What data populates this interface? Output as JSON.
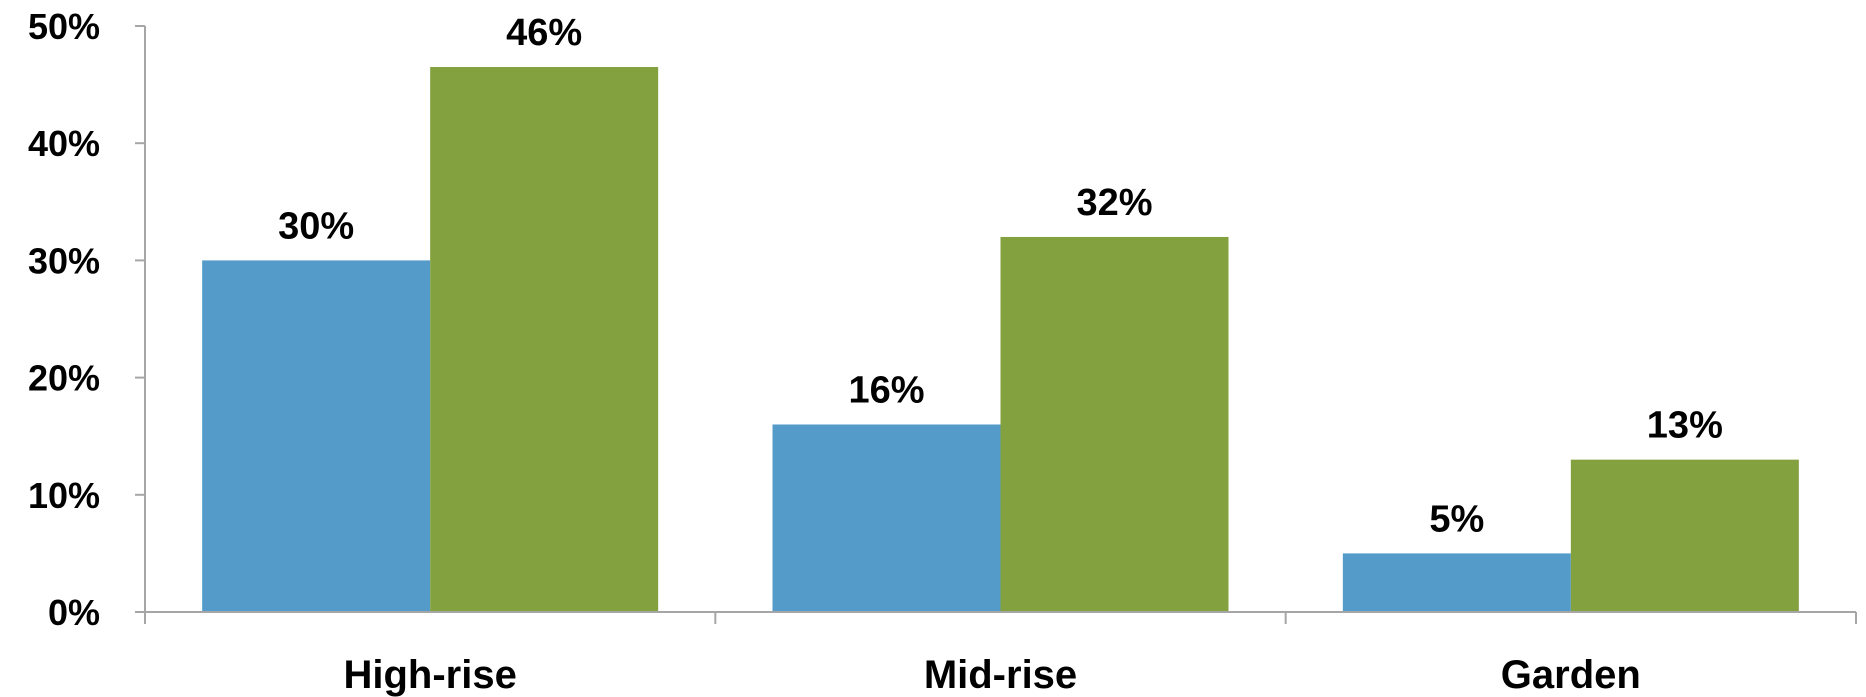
{
  "chart_data": {
    "type": "bar",
    "categories": [
      "High-rise",
      "Mid-rise",
      "Garden"
    ],
    "series": [
      {
        "values": [
          30,
          16,
          5
        ],
        "data_labels": [
          "30%",
          "16%",
          "5%"
        ],
        "color": "#559bc9"
      },
      {
        "values": [
          46.5,
          32,
          13
        ],
        "data_labels": [
          "46%",
          "32%",
          "13%"
        ],
        "color": "#84a13f"
      }
    ],
    "ylim": [
      0,
      50
    ],
    "yticks": [
      0,
      10,
      20,
      30,
      40,
      50
    ],
    "ytick_labels": [
      "0%",
      "10%",
      "20%",
      "30%",
      "40%",
      "50%"
    ],
    "title": "",
    "xlabel": "",
    "ylabel": "",
    "grid": false,
    "legend": "none",
    "axis_color": "#a6a6a6"
  }
}
